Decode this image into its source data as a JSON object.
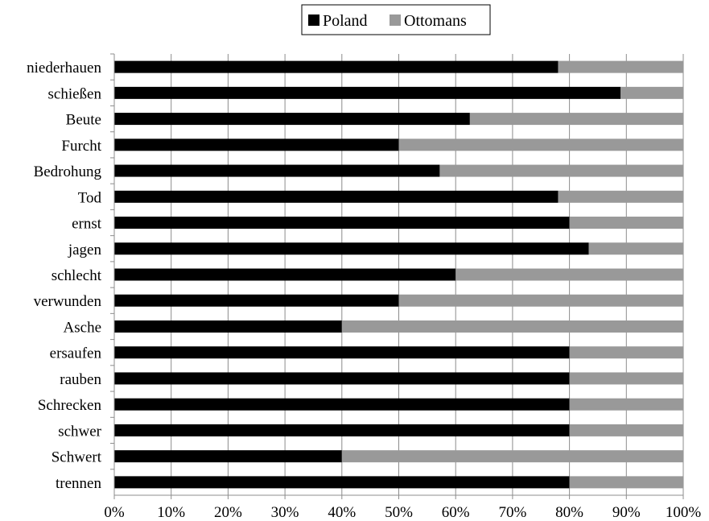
{
  "chart_data": {
    "type": "bar",
    "orientation": "horizontal",
    "stacked": "percent",
    "categories": [
      "niederhauen",
      "schießen",
      "Beute",
      "Furcht",
      "Bedrohung",
      "Tod",
      "ernst",
      "jagen",
      "schlecht",
      "verwunden",
      "Asche",
      "ersaufen",
      "rauben",
      "Schrecken",
      "schwer",
      "Schwert",
      "trennen"
    ],
    "series": [
      {
        "name": "Poland",
        "color": "#000000",
        "values": [
          78,
          89,
          62.5,
          50,
          57.2,
          78,
          80,
          83.4,
          60,
          50,
          40,
          80,
          80,
          80,
          80,
          40,
          80
        ]
      },
      {
        "name": "Ottomans",
        "color": "#999999",
        "values": [
          22,
          11,
          37.5,
          50,
          42.8,
          22,
          20,
          16.6,
          40,
          50,
          60,
          20,
          20,
          20,
          20,
          60,
          20
        ]
      }
    ],
    "xlim": [
      0,
      100
    ],
    "x_ticks": [
      "0%",
      "10%",
      "20%",
      "30%",
      "40%",
      "50%",
      "60%",
      "70%",
      "80%",
      "90%",
      "100%"
    ],
    "grid": true,
    "legend_position": "top-center",
    "title": "",
    "xlabel": "",
    "ylabel": ""
  }
}
